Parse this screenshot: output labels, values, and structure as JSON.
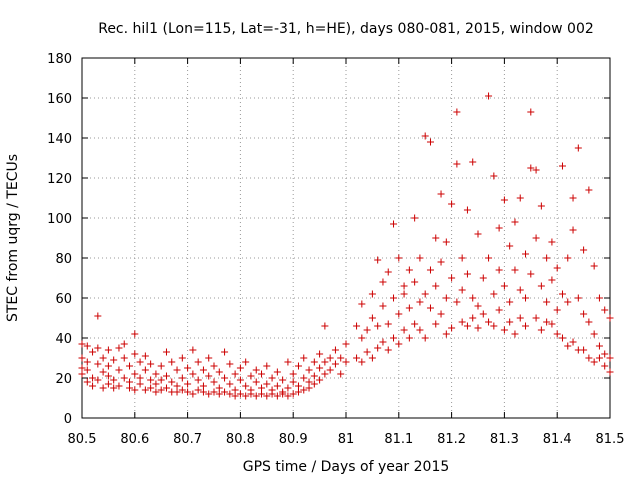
{
  "chart_data": {
    "type": "scatter",
    "title": "Rec. hil1 (Lon=115, Lat=-31, h=HE), days 080-081, 2015, window 002",
    "xlabel": "GPS time / Days of year 2015",
    "ylabel": "STEC from uqrg / TECUs",
    "xlim": [
      80.5,
      81.5
    ],
    "ylim": [
      0,
      180
    ],
    "xticks": [
      "80.5",
      "80.6",
      "80.7",
      "80.8",
      "80.9",
      "81",
      "81.1",
      "81.2",
      "81.3",
      "81.4",
      "81.5"
    ],
    "yticks": [
      "0",
      "20",
      "40",
      "60",
      "80",
      "100",
      "120",
      "140",
      "160",
      "180"
    ],
    "grid": true,
    "marker": "+",
    "marker_color": "#cc0000",
    "points": [
      [
        80.5,
        25
      ],
      [
        80.5,
        37
      ],
      [
        80.5,
        22
      ],
      [
        80.5,
        30
      ],
      [
        80.51,
        18
      ],
      [
        80.51,
        28
      ],
      [
        80.51,
        36
      ],
      [
        80.51,
        24
      ],
      [
        80.52,
        16
      ],
      [
        80.52,
        20
      ],
      [
        80.52,
        33
      ],
      [
        80.53,
        51
      ],
      [
        80.53,
        27
      ],
      [
        80.53,
        19
      ],
      [
        80.53,
        35
      ],
      [
        80.54,
        15
      ],
      [
        80.54,
        23
      ],
      [
        80.54,
        30
      ],
      [
        80.55,
        17
      ],
      [
        80.55,
        26
      ],
      [
        80.55,
        34
      ],
      [
        80.55,
        21
      ],
      [
        80.56,
        15
      ],
      [
        80.56,
        19
      ],
      [
        80.56,
        29
      ],
      [
        80.57,
        35
      ],
      [
        80.57,
        24
      ],
      [
        80.57,
        16
      ],
      [
        80.58,
        37
      ],
      [
        80.58,
        20
      ],
      [
        80.58,
        30
      ],
      [
        80.59,
        15
      ],
      [
        80.59,
        26
      ],
      [
        80.59,
        18
      ],
      [
        80.6,
        42
      ],
      [
        80.6,
        22
      ],
      [
        80.6,
        32
      ],
      [
        80.6,
        14
      ],
      [
        80.61,
        17
      ],
      [
        80.61,
        28
      ],
      [
        80.61,
        20
      ],
      [
        80.62,
        14
      ],
      [
        80.62,
        24
      ],
      [
        80.62,
        31
      ],
      [
        80.63,
        15
      ],
      [
        80.63,
        19
      ],
      [
        80.63,
        27
      ],
      [
        80.64,
        13
      ],
      [
        80.64,
        22
      ],
      [
        80.64,
        17
      ],
      [
        80.65,
        14
      ],
      [
        80.65,
        26
      ],
      [
        80.65,
        19
      ],
      [
        80.66,
        33
      ],
      [
        80.66,
        15
      ],
      [
        80.66,
        21
      ],
      [
        80.67,
        13
      ],
      [
        80.67,
        18
      ],
      [
        80.67,
        28
      ],
      [
        80.68,
        16
      ],
      [
        80.68,
        24
      ],
      [
        80.68,
        13
      ],
      [
        80.69,
        20
      ],
      [
        80.69,
        14
      ],
      [
        80.69,
        30
      ],
      [
        80.7,
        13
      ],
      [
        80.7,
        17
      ],
      [
        80.7,
        25
      ],
      [
        80.71,
        12
      ],
      [
        80.71,
        22
      ],
      [
        80.71,
        34
      ],
      [
        80.72,
        14
      ],
      [
        80.72,
        19
      ],
      [
        80.72,
        28
      ],
      [
        80.73,
        13
      ],
      [
        80.73,
        16
      ],
      [
        80.73,
        24
      ],
      [
        80.74,
        12
      ],
      [
        80.74,
        21
      ],
      [
        80.74,
        30
      ],
      [
        80.75,
        13
      ],
      [
        80.75,
        18
      ],
      [
        80.75,
        26
      ],
      [
        80.76,
        12
      ],
      [
        80.76,
        15
      ],
      [
        80.76,
        23
      ],
      [
        80.77,
        13
      ],
      [
        80.77,
        20
      ],
      [
        80.77,
        33
      ],
      [
        80.78,
        12
      ],
      [
        80.78,
        17
      ],
      [
        80.78,
        27
      ],
      [
        80.79,
        11
      ],
      [
        80.79,
        22
      ],
      [
        80.79,
        14
      ],
      [
        80.8,
        12
      ],
      [
        80.8,
        19
      ],
      [
        80.8,
        25
      ],
      [
        80.81,
        11
      ],
      [
        80.81,
        16
      ],
      [
        80.81,
        28
      ],
      [
        80.82,
        12
      ],
      [
        80.82,
        21
      ],
      [
        80.82,
        14
      ],
      [
        80.83,
        11
      ],
      [
        80.83,
        18
      ],
      [
        80.83,
        24
      ],
      [
        80.84,
        12
      ],
      [
        80.84,
        15
      ],
      [
        80.84,
        22
      ],
      [
        80.85,
        11
      ],
      [
        80.85,
        17
      ],
      [
        80.85,
        26
      ],
      [
        80.86,
        12
      ],
      [
        80.86,
        20
      ],
      [
        80.86,
        14
      ],
      [
        80.87,
        11
      ],
      [
        80.87,
        16
      ],
      [
        80.87,
        23
      ],
      [
        80.88,
        12
      ],
      [
        80.88,
        19
      ],
      [
        80.88,
        13
      ],
      [
        80.89,
        11
      ],
      [
        80.89,
        15
      ],
      [
        80.89,
        28
      ],
      [
        80.9,
        12
      ],
      [
        80.9,
        18
      ],
      [
        80.9,
        22
      ],
      [
        80.91,
        13
      ],
      [
        80.91,
        16
      ],
      [
        80.91,
        26
      ],
      [
        80.92,
        14
      ],
      [
        80.92,
        20
      ],
      [
        80.92,
        30
      ],
      [
        80.93,
        15
      ],
      [
        80.93,
        24
      ],
      [
        80.93,
        18
      ],
      [
        80.94,
        17
      ],
      [
        80.94,
        28
      ],
      [
        80.94,
        21
      ],
      [
        80.95,
        19
      ],
      [
        80.95,
        25
      ],
      [
        80.95,
        32
      ],
      [
        80.96,
        46
      ],
      [
        80.96,
        22
      ],
      [
        80.96,
        28
      ],
      [
        80.97,
        24
      ],
      [
        80.97,
        30
      ],
      [
        80.98,
        27
      ],
      [
        80.98,
        34
      ],
      [
        80.99,
        30
      ],
      [
        80.99,
        22
      ],
      [
        81.0,
        37
      ],
      [
        81.0,
        28
      ],
      [
        81.02,
        30
      ],
      [
        81.02,
        46
      ],
      [
        81.03,
        28
      ],
      [
        81.03,
        40
      ],
      [
        81.03,
        57
      ],
      [
        81.04,
        33
      ],
      [
        81.04,
        44
      ],
      [
        81.05,
        30
      ],
      [
        81.05,
        50
      ],
      [
        81.05,
        62
      ],
      [
        81.06,
        35
      ],
      [
        81.06,
        46
      ],
      [
        81.06,
        79
      ],
      [
        81.07,
        38
      ],
      [
        81.07,
        56
      ],
      [
        81.07,
        68
      ],
      [
        81.08,
        34
      ],
      [
        81.08,
        47
      ],
      [
        81.08,
        73
      ],
      [
        81.09,
        40
      ],
      [
        81.09,
        60
      ],
      [
        81.09,
        97
      ],
      [
        81.1,
        37
      ],
      [
        81.1,
        52
      ],
      [
        81.1,
        80
      ],
      [
        81.11,
        44
      ],
      [
        81.11,
        66
      ],
      [
        81.11,
        62
      ],
      [
        81.12,
        40
      ],
      [
        81.12,
        55
      ],
      [
        81.12,
        74
      ],
      [
        81.13,
        47
      ],
      [
        81.13,
        68
      ],
      [
        81.13,
        100
      ],
      [
        81.14,
        44
      ],
      [
        81.14,
        58
      ],
      [
        81.14,
        80
      ],
      [
        81.15,
        40
      ],
      [
        81.15,
        62
      ],
      [
        81.15,
        141
      ],
      [
        81.16,
        55
      ],
      [
        81.16,
        74
      ],
      [
        81.16,
        138
      ],
      [
        81.17,
        47
      ],
      [
        81.17,
        90
      ],
      [
        81.17,
        66
      ],
      [
        81.18,
        52
      ],
      [
        81.18,
        78
      ],
      [
        81.18,
        112
      ],
      [
        81.19,
        42
      ],
      [
        81.19,
        60
      ],
      [
        81.19,
        88
      ],
      [
        81.2,
        45
      ],
      [
        81.2,
        107
      ],
      [
        81.2,
        70
      ],
      [
        81.21,
        58
      ],
      [
        81.21,
        127
      ],
      [
        81.21,
        153
      ],
      [
        81.22,
        48
      ],
      [
        81.22,
        80
      ],
      [
        81.22,
        64
      ],
      [
        81.23,
        46
      ],
      [
        81.23,
        104
      ],
      [
        81.23,
        72
      ],
      [
        81.24,
        50
      ],
      [
        81.24,
        128
      ],
      [
        81.24,
        60
      ],
      [
        81.25,
        45
      ],
      [
        81.25,
        56
      ],
      [
        81.25,
        92
      ],
      [
        81.26,
        52
      ],
      [
        81.26,
        70
      ],
      [
        81.27,
        48
      ],
      [
        81.27,
        161
      ],
      [
        81.27,
        80
      ],
      [
        81.28,
        46
      ],
      [
        81.28,
        121
      ],
      [
        81.28,
        62
      ],
      [
        81.29,
        54
      ],
      [
        81.29,
        95
      ],
      [
        81.29,
        74
      ],
      [
        81.3,
        44
      ],
      [
        81.3,
        66
      ],
      [
        81.3,
        109
      ],
      [
        81.31,
        48
      ],
      [
        81.31,
        86
      ],
      [
        81.31,
        58
      ],
      [
        81.32,
        42
      ],
      [
        81.32,
        98
      ],
      [
        81.32,
        74
      ],
      [
        81.33,
        50
      ],
      [
        81.33,
        110
      ],
      [
        81.33,
        64
      ],
      [
        81.34,
        46
      ],
      [
        81.34,
        82
      ],
      [
        81.34,
        60
      ],
      [
        81.35,
        153
      ],
      [
        81.35,
        125
      ],
      [
        81.35,
        72
      ],
      [
        81.36,
        50
      ],
      [
        81.36,
        90
      ],
      [
        81.36,
        124
      ],
      [
        81.37,
        44
      ],
      [
        81.37,
        106
      ],
      [
        81.37,
        66
      ],
      [
        81.38,
        48
      ],
      [
        81.38,
        80
      ],
      [
        81.38,
        58
      ],
      [
        81.39,
        47
      ],
      [
        81.39,
        88
      ],
      [
        81.39,
        69
      ],
      [
        81.4,
        42
      ],
      [
        81.4,
        75
      ],
      [
        81.4,
        54
      ],
      [
        81.41,
        40
      ],
      [
        81.41,
        62
      ],
      [
        81.41,
        126
      ],
      [
        81.42,
        36
      ],
      [
        81.42,
        58
      ],
      [
        81.42,
        80
      ],
      [
        81.43,
        38
      ],
      [
        81.43,
        110
      ],
      [
        81.43,
        94
      ],
      [
        81.44,
        34
      ],
      [
        81.44,
        60
      ],
      [
        81.44,
        135
      ],
      [
        81.45,
        34
      ],
      [
        81.45,
        52
      ],
      [
        81.45,
        84
      ],
      [
        81.46,
        30
      ],
      [
        81.46,
        48
      ],
      [
        81.46,
        114
      ],
      [
        81.47,
        28
      ],
      [
        81.47,
        42
      ],
      [
        81.47,
        76
      ],
      [
        81.48,
        30
      ],
      [
        81.48,
        36
      ],
      [
        81.48,
        60
      ],
      [
        81.49,
        26
      ],
      [
        81.49,
        32
      ],
      [
        81.49,
        54
      ],
      [
        81.5,
        23
      ],
      [
        81.5,
        30
      ],
      [
        81.5,
        50
      ]
    ]
  }
}
